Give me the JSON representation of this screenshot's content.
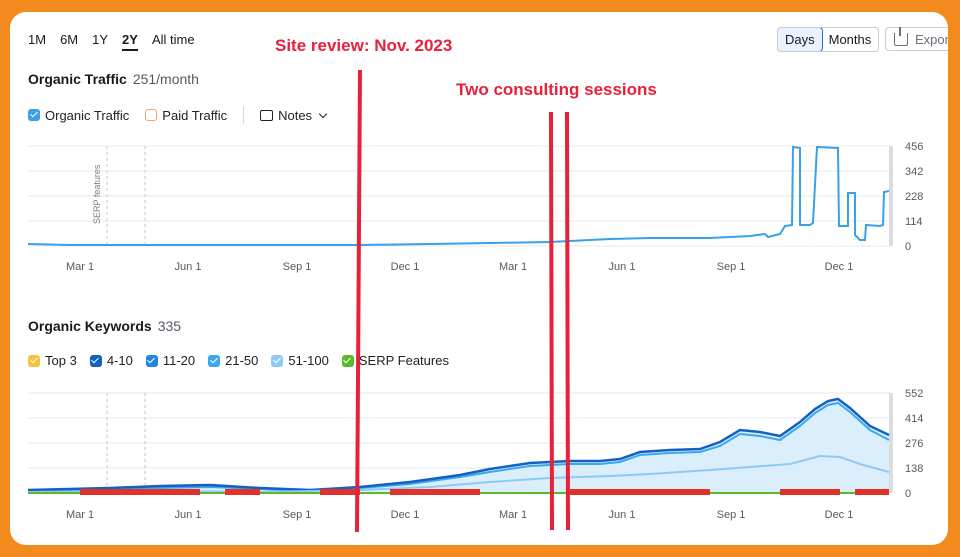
{
  "ranges": [
    "1M",
    "6M",
    "1Y",
    "2Y",
    "All time"
  ],
  "active_range": "2Y",
  "granularity": {
    "days": "Days",
    "months": "Months"
  },
  "export_label": "Export",
  "traffic": {
    "title": "Organic Traffic",
    "value": "251/month",
    "legend": {
      "organic": "Organic Traffic",
      "paid": "Paid Traffic",
      "notes": "Notes"
    },
    "serp_marker": "SERP features",
    "y_ticks": [
      "456",
      "342",
      "228",
      "114",
      "0"
    ],
    "x_ticks": [
      "Mar 1",
      "Jun 1",
      "Sep 1",
      "Dec 1",
      "Mar 1",
      "Jun 1",
      "Sep 1",
      "Dec 1"
    ]
  },
  "keywords": {
    "title": "Organic Keywords",
    "value": "335",
    "legend": [
      "Top 3",
      "4-10",
      "11-20",
      "21-50",
      "51-100",
      "SERP Features"
    ],
    "y_ticks": [
      "552",
      "414",
      "276",
      "138",
      "0"
    ],
    "x_ticks": [
      "Mar 1",
      "Jun 1",
      "Sep 1",
      "Dec 1",
      "Mar 1",
      "Jun 1",
      "Sep 1",
      "Dec 1"
    ]
  },
  "annotations": {
    "site_review": "Site review: Nov. 2023",
    "consulting": "Two consulting sessions"
  },
  "colors": {
    "organic": "#3aa0e8",
    "paid": "#f5a36b",
    "top3": "#f7c23b",
    "k4_10": "#1461c4",
    "k11_20": "#1f85e6",
    "k21_50": "#3aa8ef",
    "k51_100": "#8fcaf5",
    "serp": "#5cb82d",
    "annotation": "#e8203a"
  }
}
